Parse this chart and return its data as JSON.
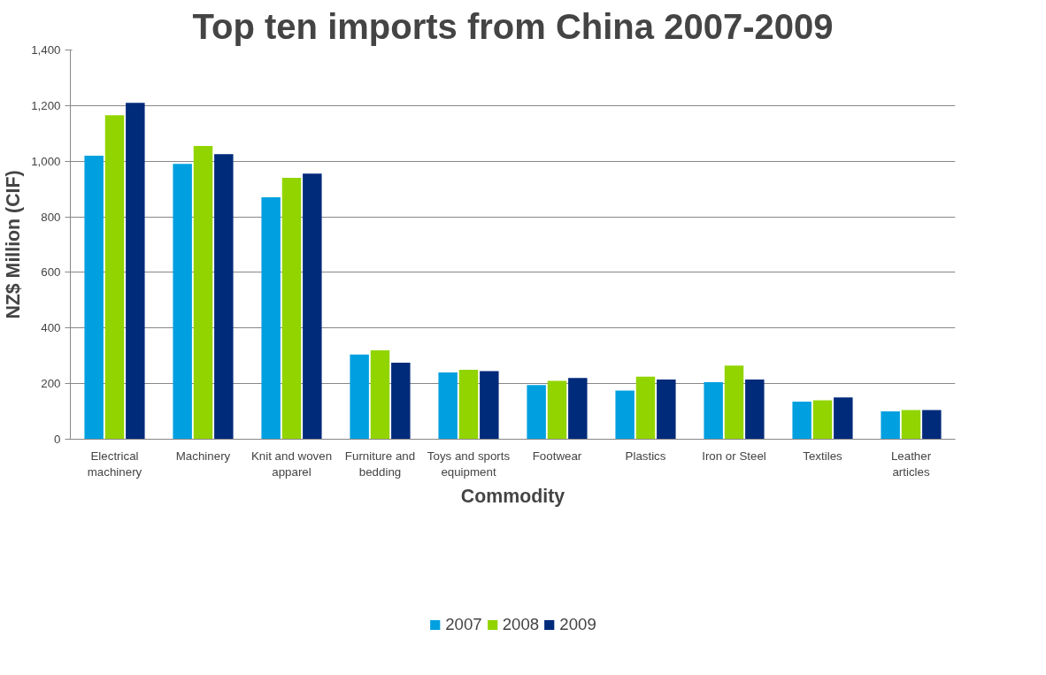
{
  "chart_data": {
    "type": "bar",
    "title": "Top ten imports from China 2007-2009",
    "xlabel": "Commodity",
    "ylabel": "NZ$ Million (CIF)",
    "categories": [
      "Electrical machinery",
      "Machinery",
      "Knit and woven apparel",
      "Furniture and bedding",
      "Toys and sports equipment",
      "Footwear",
      "Plastics",
      "Iron or Steel",
      "Textiles",
      "Leather articles"
    ],
    "series": [
      {
        "name": "2007",
        "color": "#00a0e0",
        "values": [
          1020,
          990,
          870,
          305,
          240,
          195,
          175,
          205,
          135,
          100
        ]
      },
      {
        "name": "2008",
        "color": "#92d400",
        "values": [
          1165,
          1055,
          940,
          320,
          250,
          210,
          225,
          265,
          140,
          105
        ]
      },
      {
        "name": "2009",
        "color": "#002a7a",
        "values": [
          1210,
          1025,
          955,
          275,
          245,
          220,
          215,
          215,
          150,
          105
        ]
      }
    ],
    "ylim": [
      0,
      1400
    ],
    "yticks": [
      {
        "value": 0,
        "label": "0"
      },
      {
        "value": 200,
        "label": "200"
      },
      {
        "value": 400,
        "label": "400"
      },
      {
        "value": 600,
        "label": "600"
      },
      {
        "value": 800,
        "label": "800"
      },
      {
        "value": 1000,
        "label": "1,000"
      },
      {
        "value": 1200,
        "label": "1,200"
      },
      {
        "value": 1400,
        "label": "1,400"
      }
    ],
    "grid": "y",
    "legend": "bottom"
  }
}
